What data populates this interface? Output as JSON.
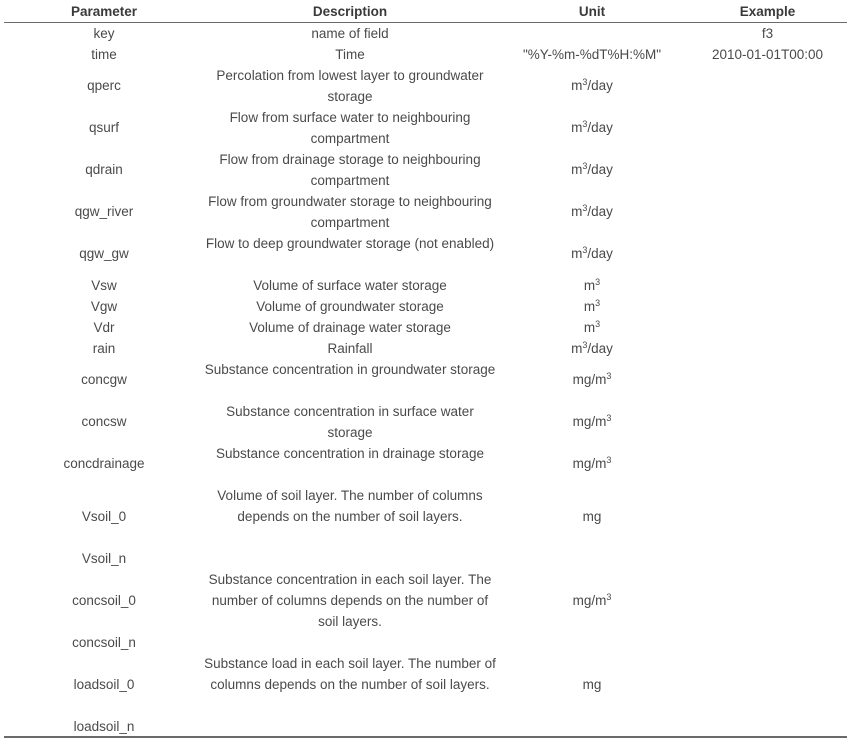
{
  "headers": {
    "parameter": "Parameter",
    "description": "Description",
    "unit": "Unit",
    "example": "Example"
  },
  "rows": [
    {
      "parameter": "key",
      "description": "name of field",
      "unit_base": "",
      "unit_sup": "",
      "unit_rest": "",
      "example": "f3"
    },
    {
      "parameter": "time",
      "description": "Time",
      "unit_base": "\"%Y-%m-%dT%H:%M\"",
      "unit_sup": "",
      "unit_rest": "",
      "example": "2010-01-01T00:00"
    },
    {
      "parameter": "qperc",
      "description": "Percolation from lowest layer to groundwater storage",
      "unit_base": "m",
      "unit_sup": "3",
      "unit_rest": "/day",
      "example": ""
    },
    {
      "parameter": "qsurf",
      "description": "Flow from surface water to neighbouring compartment",
      "unit_base": "m",
      "unit_sup": "3",
      "unit_rest": "/day",
      "example": ""
    },
    {
      "parameter": "qdrain",
      "description": "Flow from drainage storage to neighbouring compartment",
      "unit_base": "m",
      "unit_sup": "3",
      "unit_rest": "/day",
      "example": ""
    },
    {
      "parameter": "qgw_river",
      "description": "Flow from groundwater storage to neighbouring compartment",
      "unit_base": "m",
      "unit_sup": "3",
      "unit_rest": "/day",
      "example": ""
    },
    {
      "parameter": "qgw_gw",
      "description": "Flow to deep groundwater storage (not enabled)",
      "unit_base": "m",
      "unit_sup": "3",
      "unit_rest": "/day",
      "example": ""
    },
    {
      "parameter": "Vsw",
      "description": "Volume of surface water storage",
      "unit_base": "m",
      "unit_sup": "3",
      "unit_rest": "",
      "example": ""
    },
    {
      "parameter": "Vgw",
      "description": "Volume of groundwater storage",
      "unit_base": "m",
      "unit_sup": "3",
      "unit_rest": "",
      "example": ""
    },
    {
      "parameter": "Vdr",
      "description": "Volume of drainage water storage",
      "unit_base": "m",
      "unit_sup": "3",
      "unit_rest": "",
      "example": ""
    },
    {
      "parameter": "rain",
      "description": "Rainfall",
      "unit_base": "m",
      "unit_sup": "3",
      "unit_rest": "/day",
      "example": ""
    },
    {
      "parameter": "concgw",
      "description": "Substance concentration in groundwater storage",
      "unit_base": "mg/m",
      "unit_sup": "3",
      "unit_rest": "",
      "example": ""
    },
    {
      "parameter": "concsw",
      "description": "Substance concentration in surface water storage",
      "unit_base": "mg/m",
      "unit_sup": "3",
      "unit_rest": "",
      "example": ""
    },
    {
      "parameter": "concdrainage",
      "description": "Substance concentration in drainage storage",
      "unit_base": "mg/m",
      "unit_sup": "3",
      "unit_rest": "",
      "example": ""
    },
    {
      "parameter": "Vsoil_0",
      "description": "Volume of soil layer. The number of columns depends on the number of soil layers.",
      "unit_base": "mg",
      "unit_sup": "",
      "unit_rest": "",
      "example": ""
    },
    {
      "parameter": "Vsoil_n",
      "description": "",
      "unit_base": "",
      "unit_sup": "",
      "unit_rest": "",
      "example": ""
    },
    {
      "parameter": "concsoil_0",
      "description": "Substance concentration in each soil layer. The number of columns depends on the number of soil layers.",
      "unit_base": "mg/m",
      "unit_sup": "3",
      "unit_rest": "",
      "example": ""
    },
    {
      "parameter": "concsoil_n",
      "description": "",
      "unit_base": "",
      "unit_sup": "",
      "unit_rest": "",
      "example": ""
    },
    {
      "parameter": "loadsoil_0",
      "description": "Substance load in each soil layer. The number of columns depends on the number of soil layers.",
      "unit_base": "mg",
      "unit_sup": "",
      "unit_rest": "",
      "example": ""
    },
    {
      "parameter": "loadsoil_n",
      "description": "",
      "unit_base": "",
      "unit_sup": "",
      "unit_rest": "",
      "example": ""
    }
  ]
}
